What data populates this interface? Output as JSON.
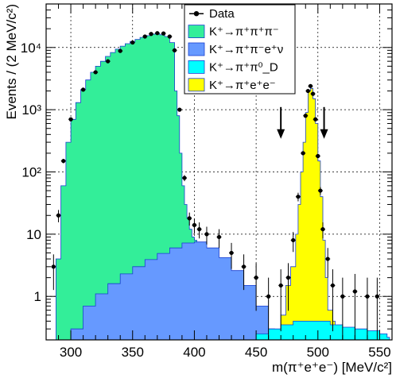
{
  "chart_data": {
    "type": "area",
    "xlabel": "m(π⁺e⁺e⁻) [MeV/c²]",
    "ylabel": "Events / (2 MeV/c²)",
    "xlim": [
      280,
      560
    ],
    "ylim": [
      0.2,
      50000
    ],
    "yscale": "log",
    "grid": true,
    "legend_position": "top-center",
    "x_ticks": [
      300,
      350,
      400,
      450,
      500,
      550
    ],
    "y_ticks": [
      {
        "value": 1,
        "label": "1"
      },
      {
        "value": 10,
        "label": "10"
      },
      {
        "value": 100,
        "label": "10²"
      },
      {
        "value": 1000,
        "label": "10³"
      },
      {
        "value": 10000,
        "label": "10⁴"
      }
    ],
    "legend": [
      {
        "label": "Data",
        "symbol": "marker"
      },
      {
        "label": "K⁺→π⁺π⁺π⁻",
        "symbol": "box",
        "color": "#33ee99"
      },
      {
        "label": "K⁺→π⁺π⁻e⁺ν",
        "symbol": "box",
        "color": "#6699ff"
      },
      {
        "label": "K⁺→π⁺π⁰_D",
        "symbol": "box",
        "color": "#00ffff"
      },
      {
        "label": "K⁺→π⁺e⁺e⁻",
        "symbol": "box",
        "color": "#ffff00"
      }
    ],
    "arrows": [
      {
        "x": 470,
        "y": 650
      },
      {
        "x": 505,
        "y": 650
      }
    ],
    "series": [
      {
        "name": "K⁺→π⁺π⁺π⁻",
        "color": "#33ee99",
        "x": [
          284,
          288,
          292,
          296,
          300,
          304,
          308,
          312,
          316,
          320,
          324,
          328,
          332,
          336,
          340,
          344,
          348,
          352,
          356,
          360,
          364,
          368,
          372,
          376,
          380,
          384,
          386,
          388,
          390,
          392,
          394,
          396,
          398,
          400
        ],
        "values": [
          0.2,
          4,
          60,
          300,
          700,
          1300,
          2100,
          3000,
          4000,
          5000,
          6000,
          7200,
          8300,
          9400,
          10500,
          11500,
          12500,
          13500,
          14500,
          15500,
          16300,
          16500,
          16000,
          15000,
          12000,
          2000,
          800,
          200,
          60,
          30,
          18,
          12,
          9,
          8
        ]
      },
      {
        "name": "K⁺→π⁺π⁻e⁺ν",
        "color": "#6699ff",
        "x": [
          296,
          300,
          310,
          320,
          330,
          340,
          350,
          360,
          370,
          380,
          390,
          400,
          410,
          420,
          430,
          440,
          450,
          460,
          465
        ],
        "values": [
          0.2,
          0.3,
          0.7,
          1.1,
          1.6,
          2.3,
          3.0,
          3.9,
          4.9,
          6.0,
          7.2,
          7.5,
          6.0,
          4.2,
          2.6,
          1.5,
          0.7,
          0.3,
          0.2
        ]
      },
      {
        "name": "K⁺→π⁺π⁰_D",
        "color": "#00ffff",
        "x": [
          440,
          450,
          460,
          470,
          480,
          490,
          500,
          510,
          520,
          530,
          540,
          550,
          556
        ],
        "values": [
          0.2,
          0.25,
          0.3,
          0.35,
          0.4,
          0.4,
          0.4,
          0.35,
          0.32,
          0.3,
          0.28,
          0.25,
          0.22
        ]
      },
      {
        "name": "K⁺→π⁺e⁺e⁻",
        "color": "#ffff00",
        "x": [
          470,
          474,
          478,
          482,
          484,
          486,
          488,
          490,
          492,
          494,
          496,
          498,
          500,
          502,
          504,
          506,
          508,
          512
        ],
        "values": [
          0.5,
          1.5,
          3,
          10,
          30,
          100,
          300,
          900,
          2000,
          2200,
          1500,
          600,
          150,
          40,
          8,
          2,
          0.6,
          0.4
        ]
      },
      {
        "name": "Data",
        "color": "#000000",
        "x": [
          286,
          290,
          294,
          300,
          310,
          320,
          330,
          340,
          350,
          360,
          365,
          370,
          375,
          380,
          384,
          388,
          392,
          396,
          400,
          404,
          410,
          420,
          430,
          440,
          450,
          460,
          470,
          476,
          480,
          484,
          488,
          490,
          492,
          494,
          496,
          498,
          500,
          502,
          504,
          508,
          512,
          520,
          530,
          540,
          548
        ],
        "values": [
          3,
          20,
          150,
          700,
          2100,
          4000,
          6000,
          8800,
          12000,
          15000,
          16500,
          17000,
          16800,
          15000,
          9000,
          1000,
          80,
          18,
          14,
          12,
          10,
          9,
          5,
          3,
          2,
          1,
          1.5,
          2,
          8,
          40,
          200,
          800,
          2000,
          2400,
          1800,
          700,
          180,
          50,
          12,
          4,
          1.5,
          1,
          1.2,
          1,
          1
        ]
      }
    ]
  }
}
